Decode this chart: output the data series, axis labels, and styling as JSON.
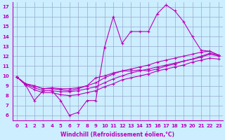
{
  "xlabel": "Windchill (Refroidissement éolien,°C)",
  "xlim": [
    -0.5,
    23.5
  ],
  "ylim": [
    5.5,
    17.5
  ],
  "yticks": [
    6,
    7,
    8,
    9,
    10,
    11,
    12,
    13,
    14,
    15,
    16,
    17
  ],
  "xticks": [
    0,
    1,
    2,
    3,
    4,
    5,
    6,
    7,
    8,
    9,
    10,
    11,
    12,
    13,
    14,
    15,
    16,
    17,
    18,
    19,
    20,
    21,
    22,
    23
  ],
  "bg_color": "#cceeff",
  "grid_color": "#99aacc",
  "line_color": "#bb00bb",
  "lines": [
    {
      "x": [
        0,
        1,
        2,
        3,
        4,
        5,
        6,
        7,
        8,
        9,
        10,
        11,
        12,
        13,
        14,
        15,
        16,
        17,
        18,
        19,
        20,
        21,
        22,
        23
      ],
      "y": [
        9.9,
        9.1,
        7.5,
        8.5,
        8.5,
        7.5,
        6.0,
        6.3,
        7.5,
        7.5,
        12.9,
        16.0,
        13.3,
        14.5,
        14.5,
        14.5,
        16.3,
        17.2,
        16.6,
        15.5,
        14.0,
        12.6,
        12.5,
        12.1
      ]
    },
    {
      "x": [
        0,
        1,
        2,
        3,
        4,
        5,
        6,
        7,
        8,
        9,
        10,
        11,
        12,
        13,
        14,
        15,
        16,
        17,
        18,
        19,
        20,
        21,
        22,
        23
      ],
      "y": [
        9.9,
        9.2,
        9.0,
        8.7,
        8.7,
        8.6,
        8.5,
        8.7,
        9.0,
        9.3,
        9.8,
        10.2,
        10.5,
        10.7,
        10.9,
        11.1,
        11.4,
        11.6,
        11.8,
        12.0,
        12.2,
        12.4,
        12.5,
        12.1
      ]
    },
    {
      "x": [
        0,
        1,
        2,
        3,
        4,
        5,
        6,
        7,
        8,
        9,
        10,
        11,
        12,
        13,
        14,
        15,
        16,
        17,
        18,
        19,
        20,
        21,
        22,
        23
      ],
      "y": [
        9.9,
        9.2,
        8.8,
        8.5,
        8.5,
        8.4,
        8.4,
        8.5,
        8.7,
        8.9,
        9.3,
        9.7,
        10.0,
        10.3,
        10.5,
        10.7,
        10.9,
        11.1,
        11.3,
        11.5,
        11.7,
        11.9,
        12.2,
        12.0
      ]
    },
    {
      "x": [
        0,
        1,
        2,
        3,
        4,
        5,
        6,
        7,
        8,
        9,
        10,
        11,
        12,
        13,
        14,
        15,
        16,
        17,
        18,
        19,
        20,
        21,
        22,
        23
      ],
      "y": [
        9.9,
        9.1,
        8.6,
        8.3,
        8.3,
        8.1,
        8.0,
        8.1,
        8.3,
        8.5,
        8.9,
        9.2,
        9.6,
        9.8,
        10.0,
        10.2,
        10.5,
        10.7,
        10.9,
        11.1,
        11.4,
        11.6,
        11.8,
        11.7
      ]
    },
    {
      "x": [
        0,
        1,
        2,
        3,
        4,
        5,
        6,
        7,
        8,
        9,
        10,
        11,
        12,
        13,
        14,
        15,
        16,
        17,
        18,
        19,
        20,
        21,
        22,
        23
      ],
      "y": [
        9.9,
        9.2,
        9.0,
        8.7,
        8.8,
        8.7,
        8.7,
        8.8,
        9.0,
        9.8,
        10.0,
        10.3,
        10.5,
        10.5,
        10.6,
        10.5,
        10.7,
        11.0,
        11.2,
        11.5,
        11.7,
        12.0,
        12.3,
        12.1
      ]
    }
  ]
}
